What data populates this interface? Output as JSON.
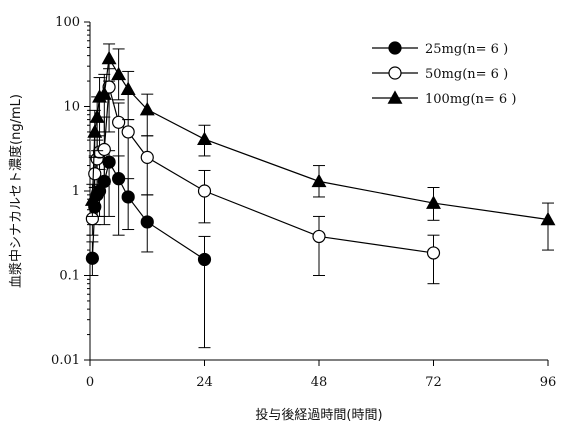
{
  "chart_data": {
    "type": "line",
    "xlabel": "投与後経過時間(時間)",
    "ylabel": "血漿中シナカルセト濃度(ng/mL)",
    "y_scale": "log",
    "xlim": [
      0,
      96
    ],
    "ylim": [
      0.01,
      100
    ],
    "x_ticks": [
      0,
      24,
      48,
      72,
      96
    ],
    "y_ticks": [
      0.01,
      0.1,
      1,
      10,
      100
    ],
    "x_tick_labels": [
      "0",
      "24",
      "48",
      "72",
      "96"
    ],
    "y_tick_labels": [
      "0.01",
      "0.1",
      "1",
      "10",
      "100"
    ],
    "legend_position": "top-right",
    "grid": false,
    "series": [
      {
        "name": "25mg(n= 6 )",
        "marker": "filled-circle",
        "color": "#000000",
        "points": [
          {
            "x": 0.5,
            "y": 0.16,
            "lo": 0.1,
            "hi": 0.25
          },
          {
            "x": 1,
            "y": 0.65,
            "lo": 0.4,
            "hi": 1.1
          },
          {
            "x": 1.5,
            "y": 0.9,
            "lo": 0.5,
            "hi": 1.5
          },
          {
            "x": 2,
            "y": 1.0,
            "lo": 0.5,
            "hi": 1.8
          },
          {
            "x": 3,
            "y": 1.3,
            "lo": 0.4,
            "hi": 3.0
          },
          {
            "x": 4,
            "y": 2.2,
            "lo": 0.5,
            "hi": 3.0
          },
          {
            "x": 6,
            "y": 1.4,
            "lo": 0.3,
            "hi": 2.6
          },
          {
            "x": 8,
            "y": 0.85,
            "lo": 0.35,
            "hi": 1.4
          },
          {
            "x": 12,
            "y": 0.43,
            "lo": 0.19,
            "hi": 0.9
          },
          {
            "x": 24,
            "y": 0.155,
            "lo": 0.014,
            "hi": 0.29
          }
        ]
      },
      {
        "name": "50mg(n= 6 )",
        "marker": "open-circle",
        "color": "#000000",
        "points": [
          {
            "x": 0.5,
            "y": 0.47,
            "lo": 0.3,
            "hi": 0.7
          },
          {
            "x": 1,
            "y": 1.6,
            "lo": 0.8,
            "hi": 2.6
          },
          {
            "x": 1.5,
            "y": 2.4,
            "lo": 1.0,
            "hi": 4.0
          },
          {
            "x": 2,
            "y": 2.9,
            "lo": 1.0,
            "hi": 5.0
          },
          {
            "x": 3,
            "y": 3.1,
            "lo": 1.2,
            "hi": 7.5
          },
          {
            "x": 4,
            "y": 17,
            "lo": 5.0,
            "hi": 28
          },
          {
            "x": 6,
            "y": 6.5,
            "lo": 1.5,
            "hi": 11
          },
          {
            "x": 8,
            "y": 5.0,
            "lo": 0.9,
            "hi": 7.0
          },
          {
            "x": 12,
            "y": 2.5,
            "lo": 0.9,
            "hi": 4.5
          },
          {
            "x": 24,
            "y": 1.0,
            "lo": 0.42,
            "hi": 1.75
          },
          {
            "x": 48,
            "y": 0.29,
            "lo": 0.1,
            "hi": 0.5
          },
          {
            "x": 72,
            "y": 0.185,
            "lo": 0.08,
            "hi": 0.3
          }
        ]
      },
      {
        "name": "100mg(n= 6 )",
        "marker": "filled-triangle",
        "color": "#000000",
        "points": [
          {
            "x": 0.5,
            "y": 0.78,
            "lo": 0.5,
            "hi": 1.2
          },
          {
            "x": 1,
            "y": 5.0,
            "lo": 2.5,
            "hi": 9.0
          },
          {
            "x": 1.5,
            "y": 7.5,
            "lo": 3.0,
            "hi": 13
          },
          {
            "x": 2,
            "y": 13,
            "lo": 4.5,
            "hi": 22
          },
          {
            "x": 3,
            "y": 14,
            "lo": 5.0,
            "hi": 24
          },
          {
            "x": 4,
            "y": 37,
            "lo": 20,
            "hi": 55
          },
          {
            "x": 6,
            "y": 24,
            "lo": 12,
            "hi": 48
          },
          {
            "x": 8,
            "y": 16,
            "lo": 7.0,
            "hi": 26
          },
          {
            "x": 12,
            "y": 9.2,
            "lo": 4.5,
            "hi": 14
          },
          {
            "x": 24,
            "y": 4.1,
            "lo": 2.6,
            "hi": 6.0
          },
          {
            "x": 48,
            "y": 1.3,
            "lo": 0.85,
            "hi": 2.0
          },
          {
            "x": 72,
            "y": 0.72,
            "lo": 0.45,
            "hi": 1.1
          },
          {
            "x": 96,
            "y": 0.46,
            "lo": 0.2,
            "hi": 0.72
          }
        ]
      }
    ]
  }
}
